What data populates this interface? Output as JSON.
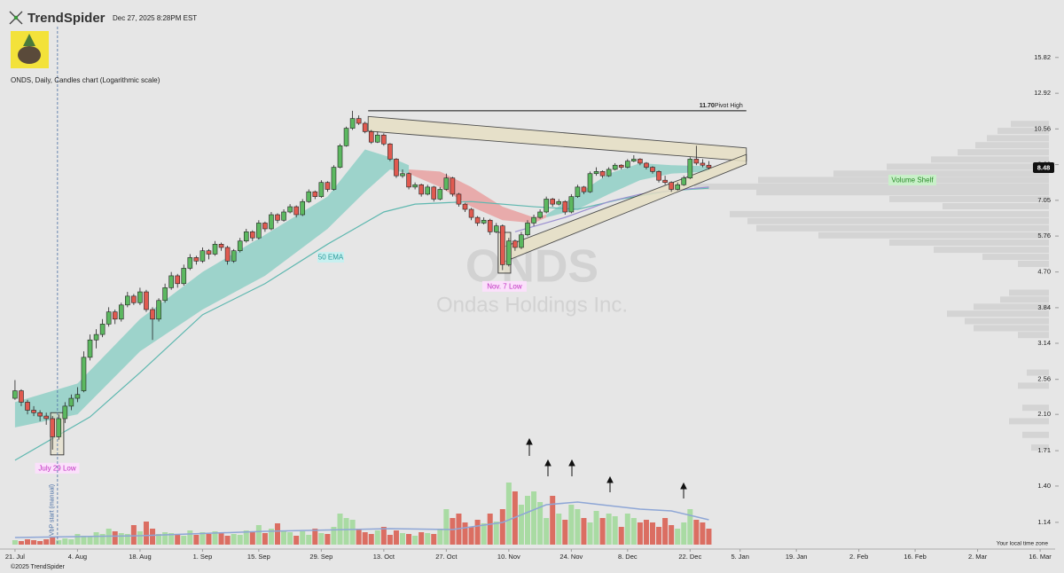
{
  "header": {
    "brand": "TrendSpider",
    "timestamp": "Dec 27, 2025 8:28PM EST",
    "chart_info": "ONDS, Daily, Candles chart (Logarithmic scale)",
    "copyright": "©2025 TrendSpider",
    "timezone": "Your local time zone"
  },
  "chart_data": {
    "type": "candlestick",
    "log_scale": true,
    "xlim": [
      -2.4,
      166.4
    ],
    "ylim": [
      1.0,
      21.9
    ],
    "yticks": [
      15.82,
      12.92,
      10.56,
      8.63,
      7.05,
      5.76,
      {
        "value": 4.7,
        "label": "4.70"
      },
      3.84,
      3.14,
      2.56,
      {
        "value": 2.1,
        "label": "2.10"
      },
      1.71,
      {
        "value": 1.4,
        "label": "1.40"
      },
      1.14
    ],
    "xticks": [
      {
        "value": 0,
        "label": "21. Jul"
      },
      {
        "value": 10,
        "label": "4. Aug"
      },
      {
        "value": 20,
        "label": "18. Aug"
      },
      {
        "value": 30,
        "label": "1. Sep"
      },
      {
        "value": 39,
        "label": "15. Sep"
      },
      {
        "value": 49,
        "label": "29. Sep"
      },
      {
        "value": 59,
        "label": "13. Oct"
      },
      {
        "value": 69,
        "label": "27. Oct"
      },
      {
        "value": 79,
        "label": "10. Nov"
      },
      {
        "value": 89,
        "label": "24. Nov"
      },
      {
        "value": 98,
        "label": "8. Dec"
      },
      {
        "value": 108,
        "label": "22. Dec"
      },
      {
        "value": 116,
        "label": "5. Jan"
      },
      {
        "value": 125,
        "label": "19. Jan"
      },
      {
        "value": 135,
        "label": "2. Feb"
      },
      {
        "value": 144,
        "label": "16. Feb"
      },
      {
        "value": 154,
        "label": "2. Mar"
      },
      {
        "value": 164,
        "label": "16. Mar"
      }
    ],
    "up_color": "#5cb860",
    "down_color": "#e05a50",
    "candles": [
      [
        2.3,
        2.55,
        2.28,
        2.4
      ],
      [
        2.4,
        2.42,
        2.2,
        2.25
      ],
      [
        2.25,
        2.28,
        2.1,
        2.15
      ],
      [
        2.15,
        2.2,
        2.08,
        2.12
      ],
      [
        2.12,
        2.15,
        2.02,
        2.08
      ],
      [
        2.08,
        2.12,
        1.98,
        2.05
      ],
      [
        2.05,
        2.08,
        1.72,
        1.85
      ],
      [
        1.85,
        2.1,
        1.82,
        2.05
      ],
      [
        2.05,
        2.25,
        2.0,
        2.2
      ],
      [
        2.2,
        2.35,
        2.15,
        2.3
      ],
      [
        2.3,
        2.45,
        2.25,
        2.35
      ],
      [
        2.4,
        3.0,
        2.38,
        2.9
      ],
      [
        2.9,
        3.3,
        2.85,
        3.2
      ],
      [
        3.2,
        3.4,
        3.05,
        3.3
      ],
      [
        3.3,
        3.6,
        3.25,
        3.5
      ],
      [
        3.5,
        3.85,
        3.45,
        3.75
      ],
      [
        3.75,
        3.8,
        3.5,
        3.6
      ],
      [
        3.6,
        3.95,
        3.55,
        3.9
      ],
      [
        3.9,
        4.2,
        3.85,
        4.1
      ],
      [
        4.1,
        4.15,
        3.9,
        3.95
      ],
      [
        3.95,
        4.3,
        3.9,
        4.2
      ],
      [
        4.2,
        4.25,
        3.75,
        3.8
      ],
      [
        3.8,
        3.85,
        3.2,
        3.6
      ],
      [
        3.6,
        4.05,
        3.55,
        4.0
      ],
      [
        4.0,
        4.4,
        3.95,
        4.3
      ],
      [
        4.3,
        4.7,
        4.25,
        4.6
      ],
      [
        4.6,
        4.65,
        4.3,
        4.4
      ],
      [
        4.4,
        4.9,
        4.35,
        4.8
      ],
      [
        4.8,
        5.2,
        4.75,
        5.1
      ],
      [
        5.1,
        5.15,
        4.9,
        5.0
      ],
      [
        5.0,
        5.4,
        4.95,
        5.3
      ],
      [
        5.3,
        5.35,
        5.05,
        5.2
      ],
      [
        5.2,
        5.6,
        5.15,
        5.5
      ],
      [
        5.5,
        5.55,
        5.3,
        5.4
      ],
      [
        5.4,
        5.45,
        4.9,
        5.0
      ],
      [
        5.0,
        5.35,
        4.95,
        5.3
      ],
      [
        5.3,
        5.7,
        5.25,
        5.6
      ],
      [
        5.6,
        6.0,
        5.55,
        5.9
      ],
      [
        5.9,
        5.95,
        5.6,
        5.7
      ],
      [
        5.7,
        6.3,
        5.65,
        6.2
      ],
      [
        6.2,
        6.25,
        5.9,
        6.0
      ],
      [
        6.0,
        6.6,
        5.95,
        6.5
      ],
      [
        6.5,
        6.55,
        6.2,
        6.3
      ],
      [
        6.3,
        6.7,
        6.25,
        6.6
      ],
      [
        6.6,
        6.9,
        6.55,
        6.8
      ],
      [
        6.8,
        6.85,
        6.4,
        6.5
      ],
      [
        6.5,
        7.1,
        6.45,
        7.0
      ],
      [
        7.0,
        7.5,
        6.95,
        7.4
      ],
      [
        7.4,
        7.45,
        7.1,
        7.2
      ],
      [
        7.2,
        7.9,
        7.15,
        7.8
      ],
      [
        7.8,
        7.85,
        7.4,
        7.5
      ],
      [
        7.5,
        8.6,
        7.45,
        8.5
      ],
      [
        8.5,
        9.7,
        8.45,
        9.6
      ],
      [
        9.6,
        10.7,
        9.55,
        10.6
      ],
      [
        10.6,
        11.7,
        10.5,
        11.2
      ],
      [
        11.2,
        11.4,
        10.8,
        10.9
      ],
      [
        10.9,
        11.0,
        10.3,
        10.4
      ],
      [
        10.4,
        10.5,
        9.7,
        9.8
      ],
      [
        9.8,
        10.4,
        9.75,
        10.2
      ],
      [
        10.2,
        10.3,
        9.6,
        9.7
      ],
      [
        9.7,
        9.75,
        8.8,
        8.9
      ],
      [
        8.9,
        8.95,
        8.0,
        8.1
      ],
      [
        8.1,
        8.4,
        8.0,
        8.2
      ],
      [
        8.2,
        8.25,
        7.5,
        7.6
      ],
      [
        7.6,
        7.8,
        7.5,
        7.7
      ],
      [
        7.7,
        7.75,
        7.2,
        7.3
      ],
      [
        7.3,
        7.7,
        7.25,
        7.6
      ],
      [
        7.6,
        7.65,
        7.0,
        7.1
      ],
      [
        7.1,
        7.6,
        7.05,
        7.5
      ],
      [
        7.5,
        8.2,
        7.45,
        8.0
      ],
      [
        8.0,
        8.05,
        7.2,
        7.3
      ],
      [
        7.3,
        7.35,
        6.8,
        6.9
      ],
      [
        6.9,
        6.95,
        6.6,
        6.7
      ],
      [
        6.7,
        6.75,
        6.3,
        6.4
      ],
      [
        6.4,
        6.45,
        6.1,
        6.2
      ],
      [
        6.2,
        6.4,
        6.15,
        6.3
      ],
      [
        6.3,
        6.35,
        5.8,
        5.9
      ],
      [
        5.9,
        6.2,
        5.85,
        6.1
      ],
      [
        6.1,
        6.15,
        4.75,
        4.9
      ],
      [
        4.9,
        5.7,
        4.85,
        5.6
      ],
      [
        5.6,
        5.65,
        5.3,
        5.4
      ],
      [
        5.4,
        5.9,
        5.35,
        5.8
      ],
      [
        5.8,
        6.3,
        5.75,
        6.2
      ],
      [
        6.2,
        6.5,
        6.1,
        6.4
      ],
      [
        6.4,
        6.7,
        6.35,
        6.6
      ],
      [
        6.6,
        7.2,
        6.55,
        7.1
      ],
      [
        7.1,
        7.15,
        6.8,
        6.9
      ],
      [
        6.9,
        7.1,
        6.85,
        7.0
      ],
      [
        7.0,
        7.05,
        6.5,
        6.6
      ],
      [
        6.6,
        7.3,
        6.55,
        7.2
      ],
      [
        7.2,
        7.7,
        7.15,
        7.6
      ],
      [
        7.6,
        7.65,
        7.3,
        7.4
      ],
      [
        7.4,
        8.3,
        7.35,
        8.2
      ],
      [
        8.2,
        8.5,
        8.1,
        8.3
      ],
      [
        8.3,
        8.35,
        8.0,
        8.1
      ],
      [
        8.1,
        8.5,
        8.05,
        8.4
      ],
      [
        8.4,
        8.7,
        8.35,
        8.6
      ],
      [
        8.6,
        8.65,
        8.4,
        8.5
      ],
      [
        8.5,
        8.9,
        8.45,
        8.8
      ],
      [
        8.8,
        9.1,
        8.75,
        8.9
      ],
      [
        8.9,
        8.95,
        8.6,
        8.7
      ],
      [
        8.7,
        8.75,
        8.4,
        8.5
      ],
      [
        8.5,
        8.55,
        8.2,
        8.3
      ],
      [
        8.3,
        8.35,
        7.8,
        7.9
      ],
      [
        7.9,
        8.1,
        7.7,
        7.8
      ],
      [
        7.8,
        7.85,
        7.4,
        7.5
      ],
      [
        7.5,
        7.8,
        7.45,
        7.7
      ],
      [
        7.7,
        8.1,
        7.65,
        8.0
      ],
      [
        8.0,
        9.0,
        7.95,
        8.9
      ],
      [
        8.9,
        9.6,
        8.6,
        8.7
      ],
      [
        8.7,
        8.9,
        8.5,
        8.6
      ],
      [
        8.6,
        8.8,
        8.4,
        8.48
      ]
    ],
    "volume": {
      "ylim": [
        0,
        100
      ],
      "up_color": "#a9dba3",
      "down_color": "#db6e62",
      "values": [
        5,
        4,
        6,
        5,
        4,
        6,
        8,
        5,
        7,
        6,
        12,
        10,
        9,
        14,
        12,
        18,
        15,
        13,
        12,
        22,
        15,
        26,
        18,
        12,
        14,
        13,
        12,
        10,
        16,
        11,
        14,
        12,
        15,
        13,
        10,
        12,
        11,
        16,
        14,
        22,
        13,
        18,
        24,
        16,
        14,
        10,
        15,
        11,
        18,
        13,
        12,
        20,
        35,
        30,
        28,
        18,
        14,
        12,
        16,
        20,
        11,
        16,
        13,
        12,
        10,
        14,
        13,
        12,
        18,
        40,
        30,
        35,
        25,
        20,
        28,
        24,
        35,
        26,
        40,
        70,
        60,
        45,
        55,
        60,
        48,
        30,
        55,
        35,
        28,
        45,
        40,
        30,
        25,
        38,
        30,
        35,
        32,
        20,
        35,
        30,
        25,
        28,
        25,
        20,
        30,
        22,
        18,
        25,
        40,
        28,
        25,
        18
      ],
      "ma": {
        "color": "#8ea6d6",
        "x": [
          0,
          20,
          40,
          60,
          70,
          78,
          85,
          90,
          100,
          105,
          111
        ],
        "values": [
          8,
          10,
          15,
          18,
          17,
          25,
          45,
          48,
          40,
          38,
          28
        ]
      }
    },
    "lines": [
      {
        "name": "50 EMA",
        "color": "#5fb8b0",
        "x": [
          0,
          12,
          20,
          30,
          40,
          50,
          59,
          64,
          73,
          83,
          90,
          97,
          105,
          111
        ],
        "values": [
          1.62,
          2.07,
          2.66,
          3.69,
          4.4,
          5.5,
          6.6,
          6.9,
          7.0,
          6.8,
          6.7,
          7.1,
          7.45,
          7.55
        ]
      },
      {
        "color": "#9b8fd0",
        "x": [
          80,
          88,
          95,
          100,
          105,
          111
        ],
        "values": [
          5.9,
          6.4,
          7.0,
          7.3,
          7.45,
          7.6
        ]
      }
    ],
    "clouds": [
      {
        "color": "#8fcfc6",
        "x": [
          0,
          10,
          20,
          30,
          40,
          50,
          56,
          60,
          63
        ],
        "upper": [
          2.25,
          2.5,
          3.6,
          4.7,
          5.8,
          7.2,
          9.4,
          9.0,
          8.6
        ],
        "lower": [
          1.95,
          2.1,
          3.0,
          3.8,
          4.6,
          6.0,
          7.4,
          8.4,
          8.2
        ]
      },
      {
        "color": "#e8a0a0",
        "x": [
          63,
          68,
          73,
          78,
          83,
          85
        ],
        "upper": [
          8.4,
          8.3,
          7.6,
          6.8,
          6.4,
          6.5
        ],
        "lower": [
          8.2,
          7.6,
          6.8,
          6.3,
          6.2,
          6.4
        ]
      },
      {
        "color": "#8fcfc6",
        "x": [
          85,
          90,
          95,
          100,
          105,
          111
        ],
        "upper": [
          6.5,
          7.3,
          8.2,
          8.7,
          8.6,
          8.55
        ],
        "lower": [
          6.4,
          6.7,
          7.3,
          7.9,
          8.2,
          8.3
        ]
      }
    ],
    "volume_profile": {
      "color": "#d4d4d4",
      "prices": [
        10.86,
        10.44,
        10.02,
        9.63,
        9.25,
        8.88,
        8.53,
        8.2,
        7.91,
        7.62,
        7.38,
        7.1,
        6.82,
        6.52,
        6.27,
        6.02,
        5.78,
        5.55,
        5.33,
        5.12,
        4.92,
        4.18,
        4.02,
        3.86,
        3.71,
        3.56,
        3.42,
        3.29,
        2.66,
        2.47,
        2.18,
        2.02,
        1.87,
        1.74
      ],
      "values": [
        43,
        58,
        70,
        83,
        103,
        133,
        183,
        243,
        328,
        400,
        330,
        180,
        120,
        360,
        340,
        330,
        260,
        180,
        130,
        75,
        35,
        45,
        55,
        85,
        115,
        95,
        85,
        35,
        25,
        35,
        30,
        45,
        30,
        20
      ]
    },
    "annotations": {
      "pivot": {
        "value": 11.7,
        "label": "11.70",
        "text": "Pivot High",
        "x": [
          56.5,
          117
        ]
      },
      "wedge": [
        {
          "x": [
            56.5,
            117
          ],
          "top": [
            11.33,
            9.48
          ],
          "bottom": [
            10.43,
            8.8
          ]
        },
        {
          "x": [
            77.7,
            117
          ],
          "top": [
            5.38,
            9.14
          ],
          "bottom": [
            4.94,
            8.65
          ]
        }
      ],
      "lows": [
        {
          "text": "July 29 Low",
          "x": [
            5.7,
            7.8
          ],
          "prices": [
            2.12,
            1.67
          ]
        },
        {
          "text": "Nov. 7 Low",
          "x": [
            77.3,
            79.3
          ],
          "prices": [
            5.88,
            4.67
          ]
        }
      ],
      "vbp": {
        "text": "VbP start (manual)",
        "x": 6.8
      },
      "shelf": "Volume Shelf"
    },
    "watermark": {
      "symbol": "ONDS",
      "company": "Ondas Holdings Inc."
    }
  }
}
